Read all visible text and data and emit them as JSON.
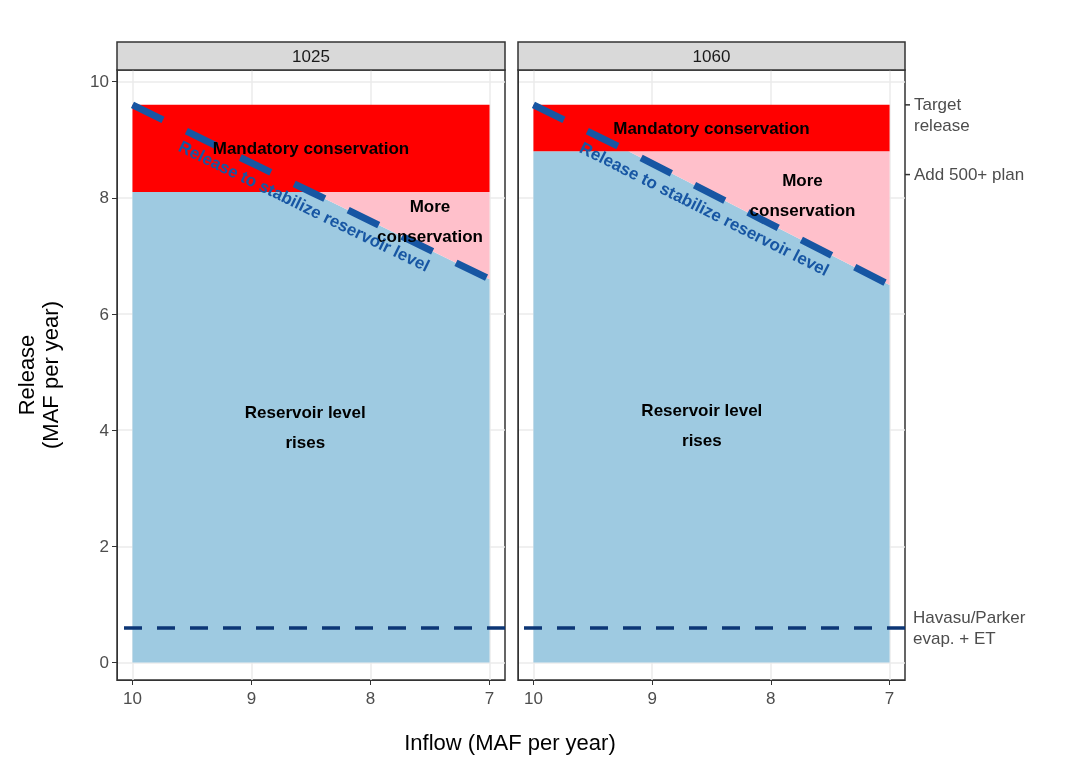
{
  "chart_data": [
    {
      "type": "area",
      "title": "1025",
      "xlabel": "Inflow (MAF per year)",
      "ylabel": "Release\n(MAF per year)",
      "stacked": true,
      "x": [
        10,
        8.5,
        7
      ],
      "xlim": [
        10.13,
        6.87
      ],
      "xticks": [
        10,
        9,
        8,
        7
      ],
      "ylim": [
        -0.3,
        10.2
      ],
      "yticks": [
        0,
        2,
        4,
        6,
        8,
        10
      ],
      "grid": true,
      "series": [
        {
          "name": "Reservoir level\nrises",
          "color": "#9ecae1",
          "values": [
            8.1,
            8.1,
            6.6
          ]
        },
        {
          "name": "More\nconservation",
          "color": "#ffc0cb",
          "values": [
            0,
            0,
            1.5
          ]
        },
        {
          "name": "Mandatory conservation",
          "color": "#ff0000",
          "values": [
            1.5,
            1.5,
            1.5
          ]
        },
        {
          "type": "line",
          "name": "Release to stabilize reservoir level",
          "color": "#1756a3",
          "line_style": "dashed",
          "values": [
            9.6,
            8.1,
            6.6
          ]
        }
      ],
      "ref_lines": [
        {
          "axis": "y",
          "value": 0.6,
          "color": "#0c3675",
          "line_style": "dashed"
        }
      ]
    },
    {
      "type": "area",
      "title": "1060",
      "stacked": true,
      "x": [
        10,
        9.2,
        7
      ],
      "xlim": [
        10.13,
        6.87
      ],
      "xticks": [
        10,
        9,
        8,
        7
      ],
      "ylim": [
        -0.3,
        10.2
      ],
      "yticks": [
        0,
        2,
        4,
        6,
        8,
        10
      ],
      "grid": true,
      "tick_labels": "x",
      "annotations": [
        {
          "text": "Target\nrelease",
          "x": 7,
          "y": 9.6
        },
        {
          "text": "Add 500+ plan",
          "x": 7,
          "y": 8.4
        }
      ],
      "series": [
        {
          "name": "Reservoir level\nrises",
          "color": "#9ecae1",
          "values": [
            8.8,
            8.8,
            6.5
          ]
        },
        {
          "name": "More\nconservation",
          "color": "#ffc0cb",
          "values": [
            0,
            0,
            2.3
          ]
        },
        {
          "name": "Mandatory conservation",
          "color": "#ff0000",
          "values": [
            0.8,
            0.8,
            0.8
          ]
        },
        {
          "type": "line",
          "name": "Release to stabilize reservoir level",
          "color": "#1756a3",
          "line_style": "dashed",
          "values": [
            9.6,
            8.8,
            6.5
          ]
        }
      ],
      "ref_lines": [
        {
          "axis": "y",
          "value": 0.6,
          "color": "#0c3675",
          "line_style": "dashed",
          "label": "Havasu/Parker\nevap. + ET"
        }
      ]
    }
  ]
}
